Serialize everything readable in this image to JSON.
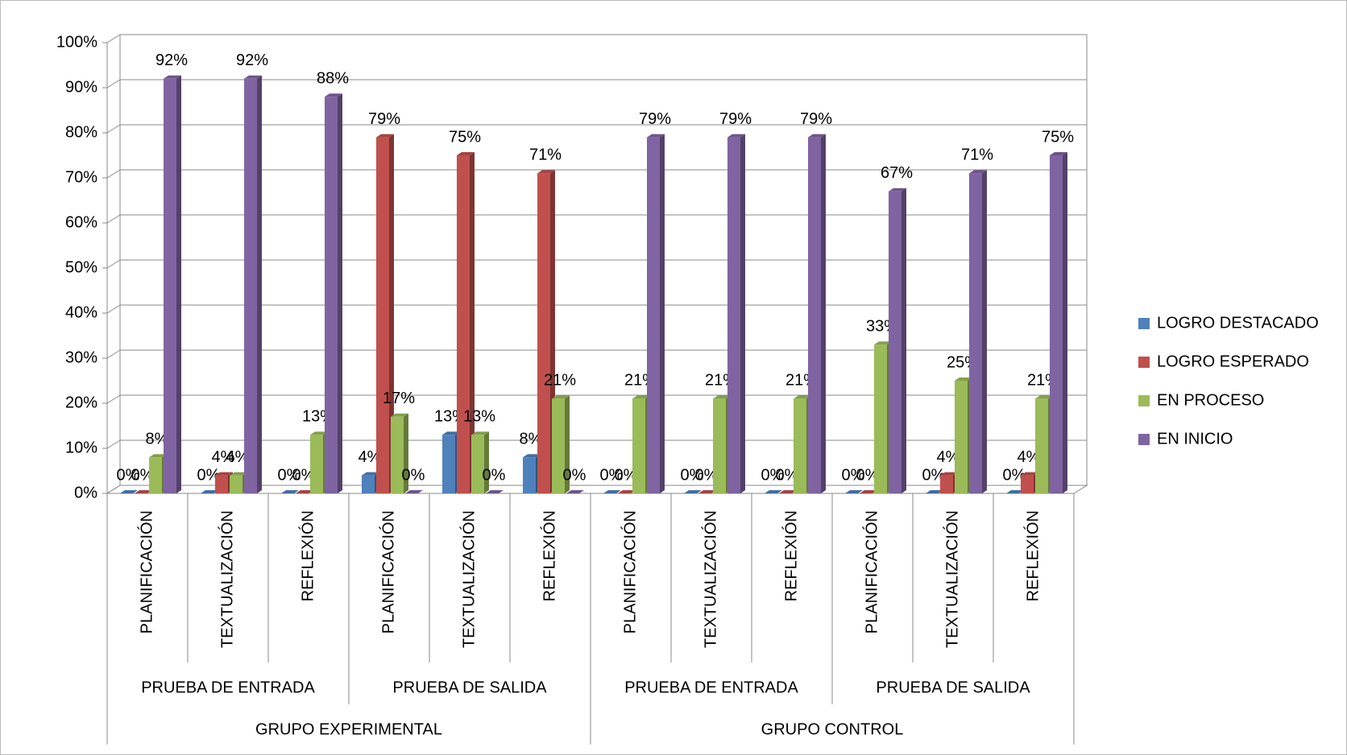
{
  "chart_data": {
    "type": "bar",
    "categories": [
      "PLANIFICACIÓN",
      "TEXTUALIZACIÓN",
      "REFLEXIÓN",
      "PLANIFICACIÓN",
      "TEXTUALIZACIÓN",
      "REFLEXIÓN",
      "PLANIFICACIÓN",
      "TEXTUALIZACIÓN",
      "REFLEXIÓN",
      "PLANIFICACIÓN",
      "TEXTUALIZACIÓN",
      "REFLEXIÓN"
    ],
    "category_groups": [
      "PRUEBA DE ENTRADA",
      "PRUEBA DE SALIDA",
      "PRUEBA DE ENTRADA",
      "PRUEBA DE SALIDA"
    ],
    "super_groups": [
      "GRUPO EXPERIMENTAL",
      "GRUPO CONTROL"
    ],
    "series": [
      {
        "name": "LOGRO DESTACADO",
        "color": "#4f81bd",
        "values": [
          0,
          0,
          0,
          4,
          13,
          8,
          0,
          0,
          0,
          0,
          0,
          0
        ],
        "value_labels": [
          "0%",
          "0%",
          "0%",
          "4%",
          "13%",
          "8%",
          "0%",
          "0%",
          "0%",
          "0%",
          "0%",
          "0%"
        ]
      },
      {
        "name": "LOGRO ESPERADO",
        "color": "#c0504d",
        "values": [
          0,
          4,
          0,
          79,
          75,
          71,
          0,
          0,
          0,
          0,
          4,
          4
        ],
        "value_labels": [
          "0%",
          "4%",
          "0%",
          "79%",
          "75%",
          "71%",
          "0%",
          "0%",
          "0%",
          "0%",
          "4%",
          "4%"
        ]
      },
      {
        "name": "EN PROCESO",
        "color": "#9bbb59",
        "values": [
          8,
          4,
          13,
          17,
          13,
          21,
          21,
          21,
          21,
          33,
          25,
          21
        ],
        "value_labels": [
          "8%",
          "4%",
          "13%",
          "17%",
          "13%",
          "21%",
          "21%",
          "21%",
          "21%",
          "33%",
          "25%",
          "21%"
        ]
      },
      {
        "name": "EN INICIO",
        "color": "#8064a2",
        "values": [
          92,
          92,
          88,
          0,
          0,
          0,
          79,
          79,
          79,
          67,
          71,
          75
        ],
        "value_labels": [
          "92%",
          "92%",
          "88%",
          "0%",
          "0%",
          "0%",
          "79%",
          "79%",
          "79%",
          "67%",
          "71%",
          "75%"
        ]
      }
    ],
    "ylim": [
      0,
      100
    ],
    "yticks": [
      {
        "value": 0,
        "label": "0%"
      },
      {
        "value": 10,
        "label": "10%"
      },
      {
        "value": 20,
        "label": "20%"
      },
      {
        "value": 30,
        "label": "30%"
      },
      {
        "value": 40,
        "label": "40%"
      },
      {
        "value": 50,
        "label": "50%"
      },
      {
        "value": 60,
        "label": "60%"
      },
      {
        "value": 70,
        "label": "70%"
      },
      {
        "value": 80,
        "label": "80%"
      },
      {
        "value": 90,
        "label": "90%"
      },
      {
        "value": 100,
        "label": "100%"
      }
    ],
    "grid": true,
    "legend": "right"
  }
}
